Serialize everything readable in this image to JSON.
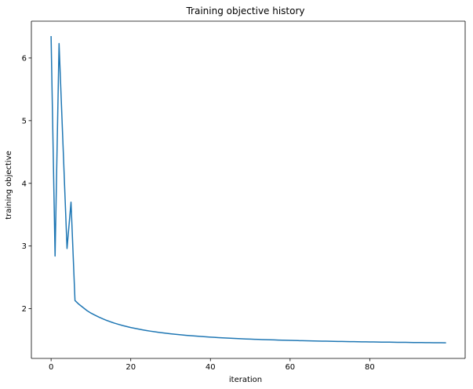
{
  "chart_data": {
    "type": "line",
    "title": "Training objective history",
    "xlabel": "iteration",
    "ylabel": "training objective",
    "xlim": [
      -4.95,
      103.95
    ],
    "ylim": [
      1.207,
      6.587
    ],
    "xticks": [
      0,
      20,
      40,
      60,
      80
    ],
    "xtick_labels": [
      "0",
      "20",
      "40",
      "60",
      "80"
    ],
    "yticks": [
      2,
      3,
      4,
      5,
      6
    ],
    "ytick_labels": [
      "2",
      "3",
      "4",
      "5",
      "6"
    ],
    "grid": false,
    "legend": "none",
    "line_color": "#1f77b4",
    "series": [
      {
        "x": [
          0,
          1,
          2,
          3,
          4,
          5,
          6,
          7,
          8,
          9,
          10,
          11,
          12,
          13,
          14,
          15,
          16,
          17,
          18,
          19,
          20,
          21,
          22,
          23,
          24,
          25,
          26,
          27,
          28,
          29,
          30,
          31,
          32,
          33,
          34,
          35,
          36,
          37,
          38,
          39,
          40,
          41,
          42,
          43,
          44,
          45,
          46,
          47,
          48,
          49,
          50,
          51,
          52,
          53,
          54,
          55,
          56,
          57,
          58,
          59,
          60,
          61,
          62,
          63,
          64,
          65,
          66,
          67,
          68,
          69,
          70,
          71,
          72,
          73,
          74,
          75,
          76,
          77,
          78,
          79,
          80,
          81,
          82,
          83,
          84,
          85,
          86,
          87,
          88,
          89,
          90,
          91,
          92,
          93,
          94,
          95,
          96,
          97,
          98,
          99
        ],
        "y": [
          6.34,
          2.84,
          6.23,
          4.6,
          2.96,
          3.7,
          2.13,
          2.07,
          2.02,
          1.97,
          1.93,
          1.898,
          1.866,
          1.838,
          1.812,
          1.789,
          1.768,
          1.749,
          1.731,
          1.715,
          1.7,
          1.687,
          1.674,
          1.662,
          1.651,
          1.641,
          1.632,
          1.623,
          1.615,
          1.607,
          1.6,
          1.593,
          1.587,
          1.581,
          1.575,
          1.57,
          1.565,
          1.56,
          1.556,
          1.551,
          1.547,
          1.543,
          1.539,
          1.536,
          1.532,
          1.529,
          1.526,
          1.523,
          1.52,
          1.517,
          1.515,
          1.512,
          1.51,
          1.508,
          1.506,
          1.504,
          1.502,
          1.5,
          1.498,
          1.496,
          1.494,
          1.493,
          1.491,
          1.49,
          1.488,
          1.487,
          1.485,
          1.484,
          1.483,
          1.482,
          1.48,
          1.479,
          1.478,
          1.477,
          1.476,
          1.475,
          1.474,
          1.473,
          1.472,
          1.471,
          1.47,
          1.469,
          1.468,
          1.467,
          1.466,
          1.466,
          1.465,
          1.464,
          1.463,
          1.463,
          1.462,
          1.461,
          1.461,
          1.46,
          1.459,
          1.459,
          1.458,
          1.458,
          1.457,
          1.456
        ]
      }
    ]
  }
}
